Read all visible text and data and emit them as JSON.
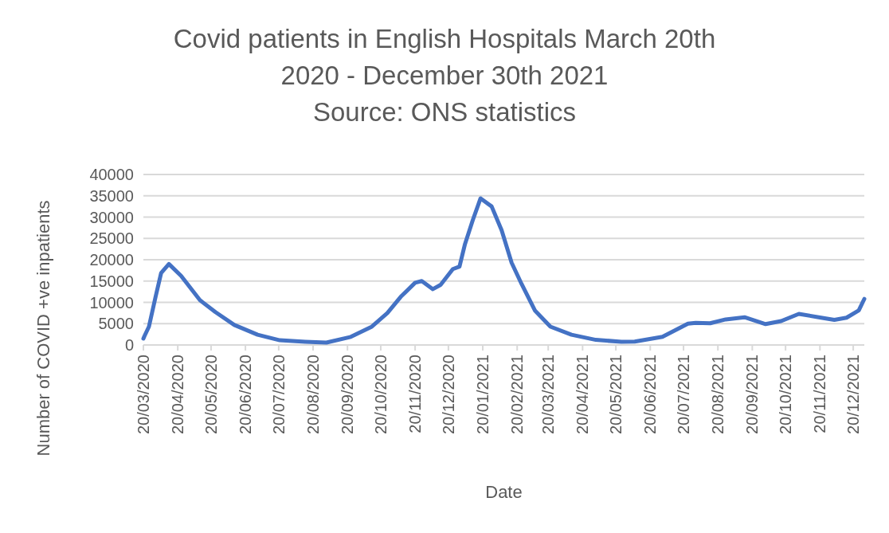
{
  "chart_data": {
    "type": "line",
    "title": "Covid patients in English Hospitals March 20th\n2020 - December 30th 2021",
    "annotations": [
      "Source: ONS statistics"
    ],
    "xlabel": "Date",
    "ylabel": "Number of COVID +ve inpatients",
    "x": [
      "2020-03-20",
      "2020-03-21",
      "2020-03-25",
      "2020-03-31",
      "2020-04-05",
      "2020-04-12",
      "2020-04-23",
      "2020-05-10",
      "2020-05-24",
      "2020-06-10",
      "2020-07-01",
      "2020-07-21",
      "2020-08-13",
      "2020-09-01",
      "2020-09-23",
      "2020-10-12",
      "2020-10-26",
      "2020-11-07",
      "2020-11-20",
      "2020-11-26",
      "2020-12-06",
      "2020-12-13",
      "2020-12-24",
      "2020-12-30",
      "2021-01-04",
      "2021-01-11",
      "2021-01-18",
      "2021-01-28",
      "2021-02-06",
      "2021-02-15",
      "2021-02-24",
      "2021-03-08",
      "2021-03-22",
      "2021-04-10",
      "2021-05-02",
      "2021-05-25",
      "2021-06-06",
      "2021-07-01",
      "2021-07-24",
      "2021-07-31",
      "2021-08-13",
      "2021-08-27",
      "2021-09-13",
      "2021-10-02",
      "2021-10-16",
      "2021-11-01",
      "2021-11-21",
      "2021-12-03",
      "2021-12-14",
      "2021-12-25",
      "2021-12-30"
    ],
    "series": [
      {
        "color": "#4472c4",
        "values": [
          1500,
          2100,
          4300,
          11300,
          16900,
          19000,
          16200,
          10500,
          7700,
          4700,
          2400,
          1100,
          750,
          560,
          1900,
          4300,
          7500,
          11300,
          14600,
          15000,
          13100,
          14100,
          17800,
          18400,
          23700,
          29300,
          34400,
          32500,
          26900,
          19300,
          14300,
          8100,
          4300,
          2400,
          1200,
          750,
          800,
          1900,
          5000,
          5200,
          5100,
          6000,
          6500,
          4900,
          5600,
          7300,
          6400,
          5900,
          6400,
          8100,
          10800
        ]
      }
    ],
    "xlim": [
      "2020-03-20",
      "2021-12-30"
    ],
    "xticks": [
      {
        "value": "2020-03-20",
        "label": "20/03/2020"
      },
      {
        "value": "2020-04-20",
        "label": "20/04/2020"
      },
      {
        "value": "2020-05-20",
        "label": "20/05/2020"
      },
      {
        "value": "2020-06-20",
        "label": "20/06/2020"
      },
      {
        "value": "2020-07-20",
        "label": "20/07/2020"
      },
      {
        "value": "2020-08-20",
        "label": "20/08/2020"
      },
      {
        "value": "2020-09-20",
        "label": "20/09/2020"
      },
      {
        "value": "2020-10-20",
        "label": "20/10/2020"
      },
      {
        "value": "2020-11-20",
        "label": "20/11/2020"
      },
      {
        "value": "2020-12-20",
        "label": "20/12/2020"
      },
      {
        "value": "2021-01-20",
        "label": "20/01/2021"
      },
      {
        "value": "2021-02-20",
        "label": "20/02/2021"
      },
      {
        "value": "2021-03-20",
        "label": "20/03/2021"
      },
      {
        "value": "2021-04-20",
        "label": "20/04/2021"
      },
      {
        "value": "2021-05-20",
        "label": "20/05/2021"
      },
      {
        "value": "2021-06-20",
        "label": "20/06/2021"
      },
      {
        "value": "2021-07-20",
        "label": "20/07/2021"
      },
      {
        "value": "2021-08-20",
        "label": "20/08/2021"
      },
      {
        "value": "2021-09-20",
        "label": "20/09/2021"
      },
      {
        "value": "2021-10-20",
        "label": "20/10/2021"
      },
      {
        "value": "2021-11-20",
        "label": "20/11/2021"
      },
      {
        "value": "2021-12-20",
        "label": "20/12/2021"
      }
    ],
    "ylim": [
      0,
      40000
    ],
    "yticks": [
      0,
      5000,
      10000,
      15000,
      20000,
      25000,
      30000,
      35000,
      40000
    ],
    "grid": "y",
    "line_style": "solid",
    "marker": "none"
  }
}
